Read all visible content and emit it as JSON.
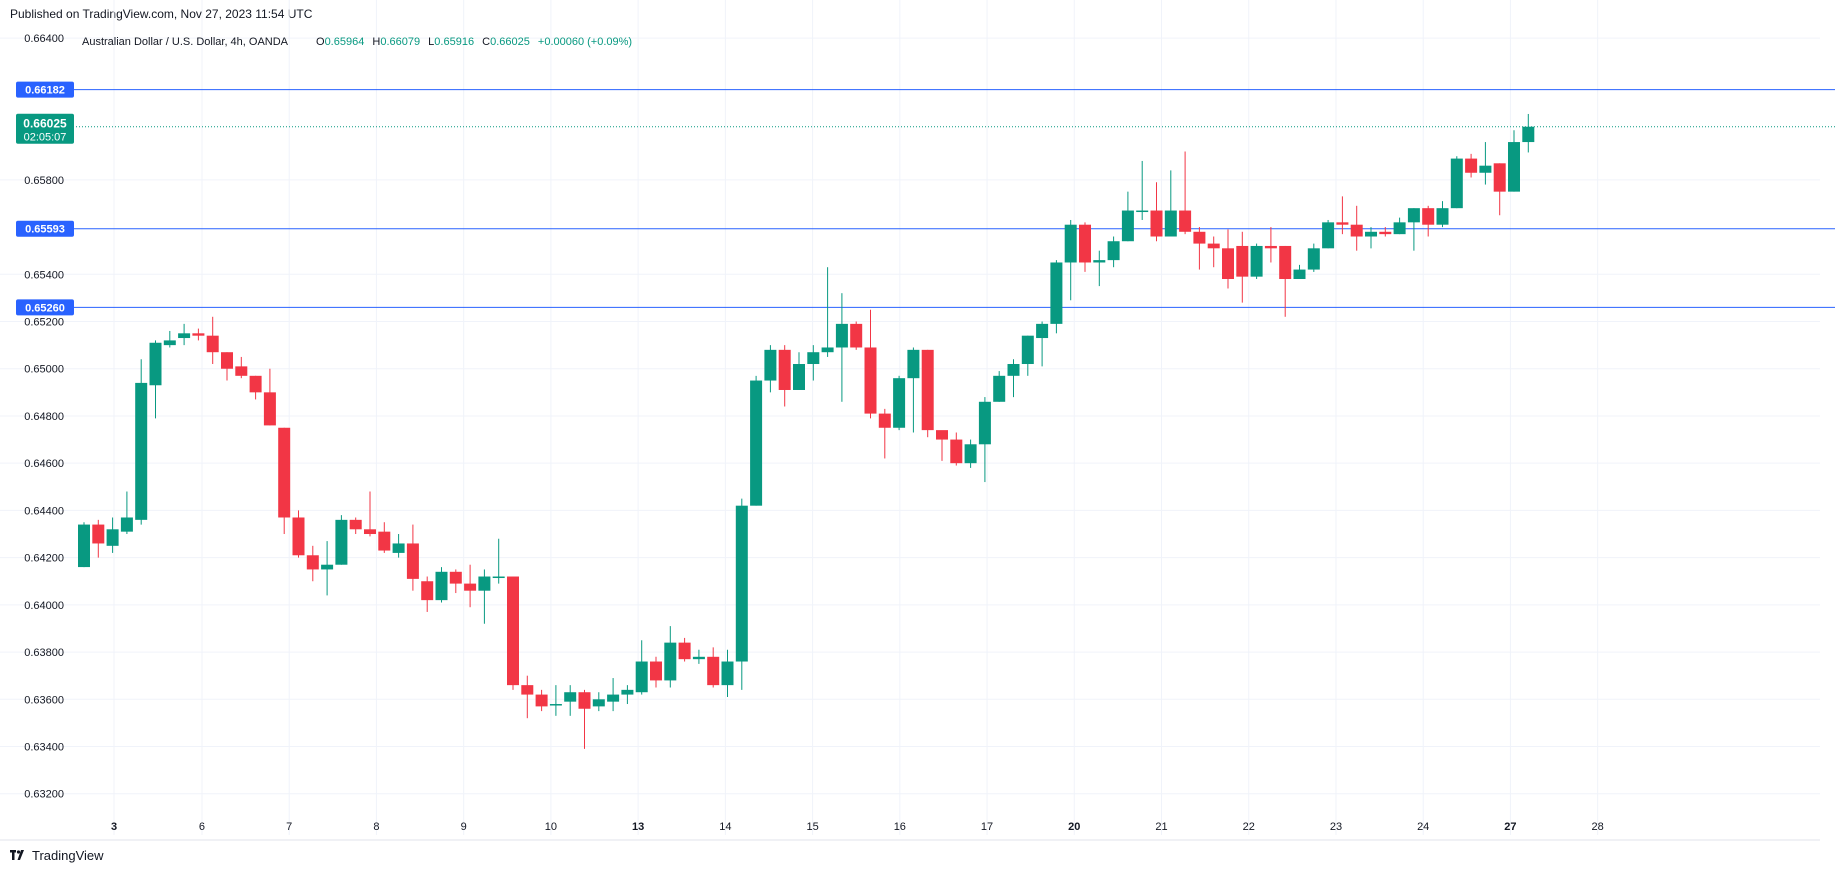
{
  "header": {
    "published": "Published on TradingView.com, Nov 27, 2023 11:54 UTC"
  },
  "legend": {
    "symbol": "Australian Dollar / U.S. Dollar, 4h, OANDA",
    "o_label": "O",
    "o_value": "0.65964",
    "h_label": "H",
    "h_value": "0.66079",
    "l_label": "L",
    "l_value": "0.65916",
    "c_label": "C",
    "c_value": "0.66025",
    "change": "+0.00060 (+0.09%)"
  },
  "price_tags": {
    "current_price": "0.66025",
    "countdown": "02:05:07"
  },
  "footer": {
    "brand": "TradingView"
  },
  "colors": {
    "up": "#089981",
    "down": "#f23645",
    "level": "#2962ff",
    "grid": "#f0f3fa",
    "axis_text": "#131722"
  },
  "chart_data": {
    "type": "candlestick",
    "ylim": [
      0.6311,
      0.6646
    ],
    "y_ticks": [
      "0.63200",
      "0.63400",
      "0.63600",
      "0.63800",
      "0.64000",
      "0.64200",
      "0.64400",
      "0.64600",
      "0.64800",
      "0.65000",
      "0.65200",
      "0.65400",
      "0.65800",
      "0.66400"
    ],
    "x_ticks": [
      {
        "label": "3",
        "index": 2.1
      },
      {
        "label": "6",
        "index": 8.25
      },
      {
        "label": "7",
        "index": 14.35
      },
      {
        "label": "8",
        "index": 20.45
      },
      {
        "label": "9",
        "index": 26.55
      },
      {
        "label": "10",
        "index": 32.65
      },
      {
        "label": "13",
        "index": 38.75
      },
      {
        "label": "14",
        "index": 44.85
      },
      {
        "label": "15",
        "index": 50.95
      },
      {
        "label": "16",
        "index": 57.05
      },
      {
        "label": "17",
        "index": 63.15
      },
      {
        "label": "20",
        "index": 69.25
      },
      {
        "label": "21",
        "index": 75.35
      },
      {
        "label": "22",
        "index": 81.45
      },
      {
        "label": "23",
        "index": 87.55
      },
      {
        "label": "24",
        "index": 93.65
      },
      {
        "label": "27",
        "index": 99.75
      },
      {
        "label": "28",
        "index": 105.85
      }
    ],
    "levels": [
      {
        "value": "0.66182",
        "y": 0.66182
      },
      {
        "value": "0.65593",
        "y": 0.65593
      },
      {
        "value": "0.65260",
        "y": 0.6526
      }
    ],
    "current_price": 0.66025,
    "candles": [
      [
        0.6416,
        0.6434,
        0.6416,
        0.6435
      ],
      [
        0.6434,
        0.6426,
        0.642,
        0.6436
      ],
      [
        0.6425,
        0.6432,
        0.6422,
        0.6437
      ],
      [
        0.6431,
        0.6437,
        0.643,
        0.6448
      ],
      [
        0.6436,
        0.6494,
        0.6434,
        0.6504
      ],
      [
        0.6493,
        0.6511,
        0.6479,
        0.6512
      ],
      [
        0.651,
        0.6512,
        0.6509,
        0.6516
      ],
      [
        0.6513,
        0.6515,
        0.651,
        0.6519
      ],
      [
        0.6515,
        0.6514,
        0.6512,
        0.6517
      ],
      [
        0.6514,
        0.6507,
        0.6502,
        0.6522
      ],
      [
        0.6507,
        0.65,
        0.6495,
        0.6507
      ],
      [
        0.6501,
        0.6497,
        0.6496,
        0.6505
      ],
      [
        0.6497,
        0.649,
        0.6487,
        0.6497
      ],
      [
        0.649,
        0.6476,
        0.6476,
        0.65
      ],
      [
        0.6475,
        0.6437,
        0.643,
        0.6475
      ],
      [
        0.6437,
        0.6421,
        0.642,
        0.644
      ],
      [
        0.6421,
        0.6415,
        0.641,
        0.6425
      ],
      [
        0.6415,
        0.6417,
        0.6404,
        0.6427
      ],
      [
        0.6417,
        0.6436,
        0.6417,
        0.6438
      ],
      [
        0.6436,
        0.6432,
        0.643,
        0.6437
      ],
      [
        0.6432,
        0.643,
        0.6429,
        0.6448
      ],
      [
        0.6431,
        0.6423,
        0.6422,
        0.6435
      ],
      [
        0.6422,
        0.6426,
        0.642,
        0.643
      ],
      [
        0.6426,
        0.6411,
        0.6406,
        0.6434
      ],
      [
        0.641,
        0.6402,
        0.6397,
        0.6412
      ],
      [
        0.6402,
        0.6414,
        0.6401,
        0.6416
      ],
      [
        0.6414,
        0.6409,
        0.6405,
        0.6415
      ],
      [
        0.6409,
        0.6406,
        0.6399,
        0.6417
      ],
      [
        0.6406,
        0.6412,
        0.6392,
        0.6415
      ],
      [
        0.6412,
        0.6412,
        0.6409,
        0.6428
      ],
      [
        0.6412,
        0.6366,
        0.6364,
        0.6412
      ],
      [
        0.6366,
        0.6362,
        0.6352,
        0.637
      ],
      [
        0.6362,
        0.6357,
        0.6355,
        0.6364
      ],
      [
        0.6358,
        0.6358,
        0.6353,
        0.6366
      ],
      [
        0.6359,
        0.6363,
        0.6353,
        0.6366
      ],
      [
        0.6363,
        0.6356,
        0.6339,
        0.6364
      ],
      [
        0.6357,
        0.636,
        0.6355,
        0.6363
      ],
      [
        0.6359,
        0.6362,
        0.6355,
        0.6369
      ],
      [
        0.6362,
        0.6364,
        0.6358,
        0.6366
      ],
      [
        0.6363,
        0.6376,
        0.6362,
        0.6385
      ],
      [
        0.6376,
        0.6368,
        0.6365,
        0.6378
      ],
      [
        0.6368,
        0.6384,
        0.6365,
        0.6391
      ],
      [
        0.6384,
        0.6377,
        0.6376,
        0.6386
      ],
      [
        0.6377,
        0.6378,
        0.6375,
        0.6381
      ],
      [
        0.6378,
        0.6366,
        0.6365,
        0.6382
      ],
      [
        0.6366,
        0.6376,
        0.6361,
        0.6381
      ],
      [
        0.6376,
        0.6442,
        0.6364,
        0.6445
      ],
      [
        0.6442,
        0.6495,
        0.6442,
        0.6497
      ],
      [
        0.6495,
        0.6508,
        0.649,
        0.651
      ],
      [
        0.6508,
        0.6491,
        0.6484,
        0.651
      ],
      [
        0.6491,
        0.6502,
        0.6491,
        0.6507
      ],
      [
        0.6502,
        0.6507,
        0.6495,
        0.651
      ],
      [
        0.6507,
        0.6509,
        0.6505,
        0.6543
      ],
      [
        0.6509,
        0.6519,
        0.6486,
        0.6532
      ],
      [
        0.6519,
        0.6509,
        0.6508,
        0.652
      ],
      [
        0.6509,
        0.6481,
        0.6479,
        0.6525
      ],
      [
        0.6481,
        0.6475,
        0.6462,
        0.6483
      ],
      [
        0.6475,
        0.6496,
        0.6474,
        0.6497
      ],
      [
        0.6496,
        0.6508,
        0.6473,
        0.6509
      ],
      [
        0.6508,
        0.6474,
        0.6471,
        0.6508
      ],
      [
        0.6474,
        0.647,
        0.6461,
        0.6473
      ],
      [
        0.647,
        0.646,
        0.6459,
        0.6473
      ],
      [
        0.646,
        0.6468,
        0.6458,
        0.647
      ],
      [
        0.6468,
        0.6486,
        0.6452,
        0.6488
      ],
      [
        0.6486,
        0.6497,
        0.6486,
        0.6499
      ],
      [
        0.6497,
        0.6502,
        0.6488,
        0.6504
      ],
      [
        0.6502,
        0.6514,
        0.6497,
        0.6514
      ],
      [
        0.6513,
        0.6519,
        0.6501,
        0.652
      ],
      [
        0.6519,
        0.6545,
        0.6515,
        0.6546
      ],
      [
        0.6545,
        0.6561,
        0.6529,
        0.6563
      ],
      [
        0.6561,
        0.6545,
        0.6541,
        0.6562
      ],
      [
        0.6545,
        0.6546,
        0.6535,
        0.655
      ],
      [
        0.6546,
        0.6554,
        0.6543,
        0.6556
      ],
      [
        0.6554,
        0.6567,
        0.6554,
        0.6575
      ],
      [
        0.6567,
        0.6567,
        0.6563,
        0.6588
      ],
      [
        0.6567,
        0.6556,
        0.6554,
        0.6579
      ],
      [
        0.6556,
        0.6567,
        0.6556,
        0.6584
      ],
      [
        0.6567,
        0.6558,
        0.6557,
        0.6592
      ],
      [
        0.6558,
        0.6553,
        0.6542,
        0.656
      ],
      [
        0.6553,
        0.6551,
        0.6543,
        0.6556
      ],
      [
        0.6551,
        0.6538,
        0.6534,
        0.6559
      ],
      [
        0.6552,
        0.6539,
        0.6528,
        0.6558
      ],
      [
        0.6539,
        0.6552,
        0.6538,
        0.6553
      ],
      [
        0.6552,
        0.6551,
        0.6545,
        0.656
      ],
      [
        0.6552,
        0.6538,
        0.6522,
        0.6552
      ],
      [
        0.6538,
        0.6542,
        0.6538,
        0.6544
      ],
      [
        0.6542,
        0.6551,
        0.6541,
        0.6553
      ],
      [
        0.6551,
        0.6562,
        0.6551,
        0.6563
      ],
      [
        0.6562,
        0.6561,
        0.6557,
        0.6573
      ],
      [
        0.6561,
        0.6556,
        0.655,
        0.6569
      ],
      [
        0.6556,
        0.6558,
        0.6551,
        0.656
      ],
      [
        0.6558,
        0.6557,
        0.6556,
        0.656
      ],
      [
        0.6557,
        0.6562,
        0.6557,
        0.6564
      ],
      [
        0.6562,
        0.6568,
        0.655,
        0.6568
      ],
      [
        0.6568,
        0.6561,
        0.6556,
        0.6569
      ],
      [
        0.6561,
        0.6568,
        0.656,
        0.6571
      ],
      [
        0.6568,
        0.6589,
        0.6568,
        0.659
      ],
      [
        0.6589,
        0.6583,
        0.6581,
        0.6591
      ],
      [
        0.6583,
        0.6586,
        0.6578,
        0.6596
      ],
      [
        0.6587,
        0.6575,
        0.6565,
        0.6587
      ],
      [
        0.6575,
        0.6596,
        0.6575,
        0.6601
      ],
      [
        0.6596,
        0.66025,
        0.65916,
        0.66079
      ]
    ]
  }
}
